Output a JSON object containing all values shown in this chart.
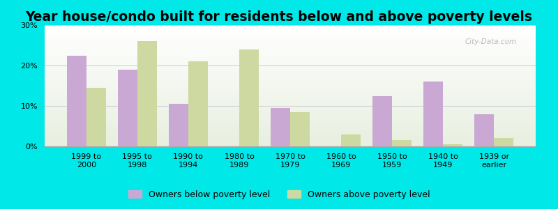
{
  "title": "Year house/condo built for residents below and above poverty levels",
  "categories": [
    "1999 to\n2000",
    "1995 to\n1998",
    "1990 to\n1994",
    "1980 to\n1989",
    "1970 to\n1979",
    "1960 to\n1969",
    "1950 to\n1959",
    "1940 to\n1949",
    "1939 or\nearlier"
  ],
  "below_poverty": [
    22.5,
    19.0,
    10.5,
    0.0,
    9.5,
    0.0,
    12.5,
    16.0,
    8.0
  ],
  "above_poverty": [
    14.5,
    26.0,
    21.0,
    24.0,
    8.5,
    3.0,
    1.5,
    0.5,
    2.0
  ],
  "below_color": "#c9a8d4",
  "above_color": "#cdd9a0",
  "background_outer": "#00e8e8",
  "ylim": [
    0,
    30
  ],
  "yticks": [
    0,
    10,
    20,
    30
  ],
  "ytick_labels": [
    "0%",
    "10%",
    "20%",
    "30%"
  ],
  "legend_below": "Owners below poverty level",
  "legend_above": "Owners above poverty level",
  "title_fontsize": 13.5,
  "tick_fontsize": 8,
  "legend_fontsize": 9,
  "bar_width": 0.38
}
